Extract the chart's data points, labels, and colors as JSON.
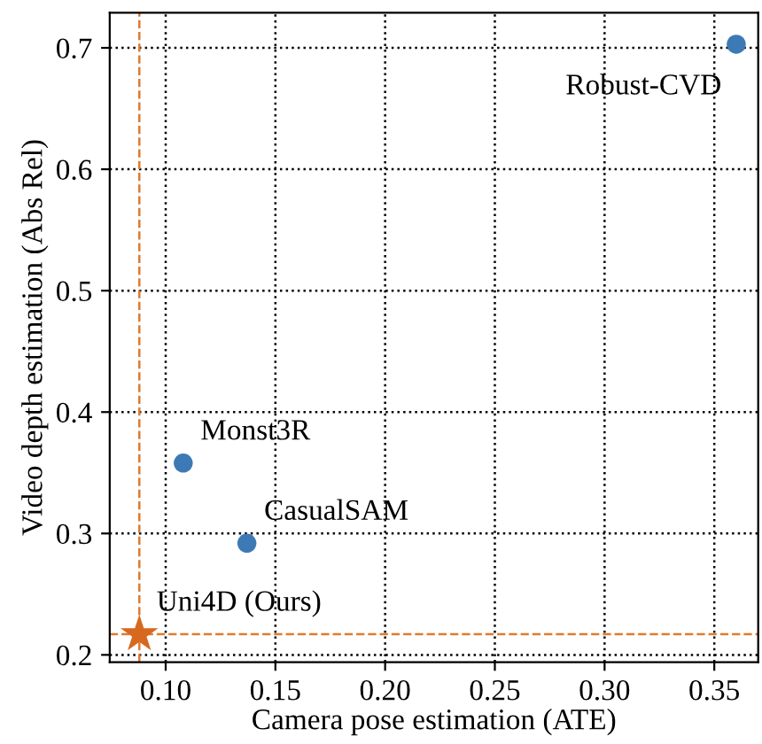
{
  "chart_data": {
    "type": "scatter",
    "xlabel": "Camera pose estimation (ATE)",
    "ylabel": "Video depth estimation (Abs Rel)",
    "series": [
      {
        "color": "#3d7ab5",
        "marker": "circle",
        "x": [
          0.36,
          0.108,
          0.137
        ],
        "values": [
          0.703,
          0.358,
          0.292
        ]
      },
      {
        "color": "#d7691f",
        "marker": "star",
        "x": [
          0.088
        ],
        "values": [
          0.217
        ]
      }
    ],
    "annotations": [
      {
        "text": "Robust-CVD",
        "x": 0.36,
        "y": 0.703
      },
      {
        "text": "Monst3R",
        "x": 0.108,
        "y": 0.358
      },
      {
        "text": "CasualSAM",
        "x": 0.137,
        "y": 0.292
      },
      {
        "text": "Uni4D (Ours)",
        "x": 0.088,
        "y": 0.217
      }
    ],
    "ref_lines": [
      {
        "axis": "x",
        "value": 0.088,
        "color": "#e07b2e",
        "line_style": "dashed"
      },
      {
        "axis": "y",
        "value": 0.217,
        "color": "#e07b2e",
        "line_style": "dashed"
      }
    ],
    "xlim": [
      0.0745,
      0.37
    ],
    "ylim": [
      0.194,
      0.729
    ],
    "xticks": [
      {
        "value": 0.1,
        "label": "0.10"
      },
      {
        "value": 0.15,
        "label": "0.15"
      },
      {
        "value": 0.2,
        "label": "0.20"
      },
      {
        "value": 0.25,
        "label": "0.25"
      },
      {
        "value": 0.3,
        "label": "0.30"
      },
      {
        "value": 0.35,
        "label": "0.35"
      }
    ],
    "yticks": [
      0.2,
      0.3,
      0.4,
      0.5,
      0.6,
      0.7
    ],
    "grid": true,
    "line_style": "dotted"
  }
}
